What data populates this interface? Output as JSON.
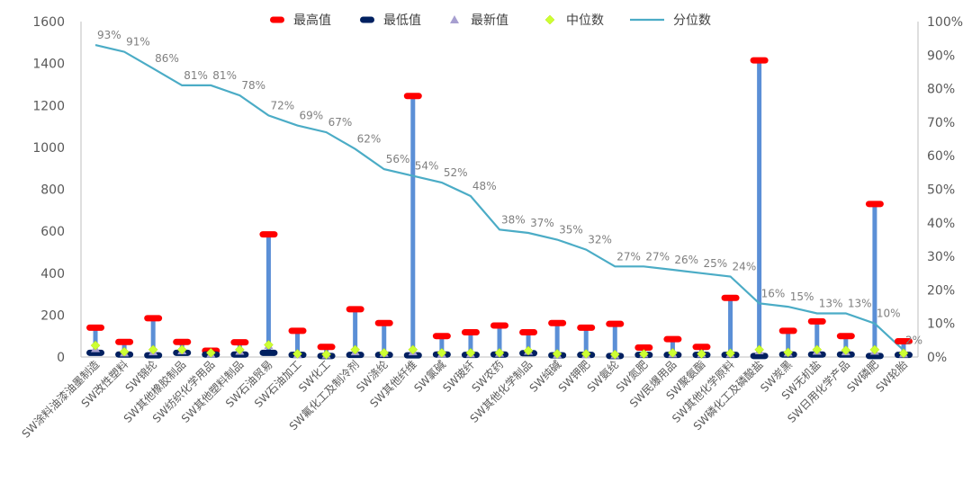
{
  "chart_data": {
    "type": "line",
    "categories": [
      "SW涂料油漆油墨制造",
      "SW改性塑料",
      "SW锦纶",
      "SW其他橡胶制品",
      "SW纺织化学用品",
      "SW其他塑料制品",
      "SW石油贸易",
      "SW石油加工",
      "SW化工",
      "SW氟化工及制冷剂",
      "SW涤纶",
      "SW其他纤维",
      "SW氯碱",
      "SW玻纤",
      "SW农药",
      "SW其他化学制品",
      "SW纯碱",
      "SW钾肥",
      "SW氨纶",
      "SW氮肥",
      "SW民爆用品",
      "SW聚氨酯",
      "SW其他化学原料",
      "SW磷化工及磷酸盐",
      "SW炭黑",
      "SW无机盐",
      "SW日用化学产品",
      "SW磷肥",
      "SW轮胎"
    ],
    "series": [
      {
        "name": "最高值",
        "axis": "left",
        "color": "#ff0000",
        "values": [
          140,
          72,
          185,
          72,
          30,
          70,
          585,
          125,
          48,
          228,
          162,
          1245,
          100,
          118,
          150,
          118,
          162,
          140,
          158,
          45,
          85,
          48,
          282,
          1415,
          125,
          170,
          100,
          730,
          75
        ]
      },
      {
        "name": "最低值",
        "axis": "left",
        "color": "#002060",
        "values": [
          20,
          12,
          8,
          20,
          12,
          12,
          20,
          10,
          5,
          10,
          10,
          8,
          12,
          10,
          12,
          18,
          8,
          10,
          5,
          10,
          10,
          10,
          10,
          5,
          12,
          12,
          12,
          5,
          10
        ]
      },
      {
        "name": "最新值",
        "axis": "left",
        "color": "#a79fd0",
        "values": [
          40,
          20,
          25,
          30,
          15,
          28,
          55,
          12,
          10,
          25,
          18,
          25,
          15,
          15,
          18,
          28,
          12,
          12,
          10,
          15,
          15,
          15,
          15,
          30,
          20,
          28,
          25,
          28,
          15
        ]
      },
      {
        "name": "中位数",
        "axis": "left",
        "color": "#ccff33",
        "values": [
          55,
          25,
          35,
          35,
          20,
          35,
          58,
          15,
          12,
          35,
          20,
          35,
          20,
          20,
          20,
          30,
          15,
          15,
          12,
          15,
          20,
          15,
          18,
          35,
          22,
          35,
          32,
          35,
          18
        ]
      },
      {
        "name": "分位数",
        "axis": "right",
        "color": "#4bacc6",
        "values": [
          93,
          91,
          86,
          81,
          81,
          78,
          72,
          69,
          67,
          62,
          56,
          54,
          52,
          48,
          38,
          37,
          35,
          32,
          27,
          27,
          26,
          25,
          24,
          16,
          15,
          13,
          13,
          10,
          2
        ]
      }
    ],
    "percentile_labels": [
      "93%",
      "91%",
      "86%",
      "81%",
      "81%",
      "78%",
      "72%",
      "69%",
      "67%",
      "62%",
      "56%",
      "54%",
      "52%",
      "48%",
      "38%",
      "37%",
      "35%",
      "32%",
      "27%",
      "27%",
      "26%",
      "25%",
      "24%",
      "16%",
      "15%",
      "13%",
      "13%",
      "10%",
      "2%"
    ],
    "ylim": [
      0,
      1600
    ],
    "y_ticks": [
      "0",
      "200",
      "400",
      "600",
      "800",
      "1000",
      "1200",
      "1400",
      "1600"
    ],
    "y2lim": [
      0,
      100
    ],
    "y2_ticks": [
      "0%",
      "10%",
      "20%",
      "30%",
      "40%",
      "50%",
      "60%",
      "70%",
      "80%",
      "90%",
      "100%"
    ],
    "range_bar_color": "#5b8fd6",
    "grid": false,
    "legend_position": "top"
  }
}
